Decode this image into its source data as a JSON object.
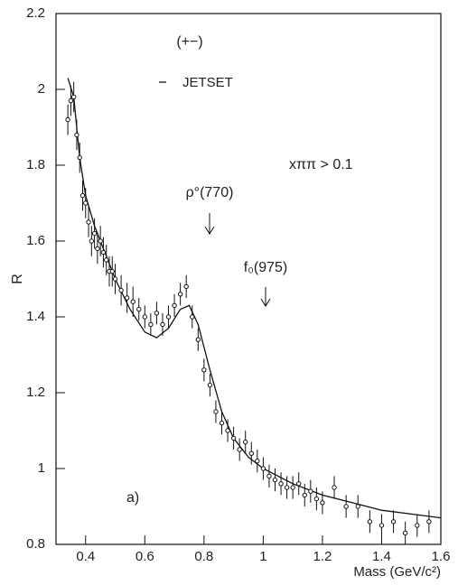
{
  "chart_data": {
    "type": "line",
    "x_label": "Mass (GeV/c²)",
    "y_label": "R",
    "annotations": [
      "(+−)",
      "xππ > 0.1",
      "ρ°(770)",
      "f₀(975)",
      "a)"
    ],
    "xlim": [
      0.3,
      1.6
    ],
    "ylim": [
      0.8,
      2.2
    ],
    "xticks": [
      0.4,
      0.6,
      0.8,
      1,
      1.2,
      1.4,
      1.6
    ],
    "yticks": [
      0.8,
      1,
      1.2,
      1.4,
      1.6,
      1.8,
      2,
      2.2
    ],
    "series": [
      {
        "name": "JETSET",
        "color": "#111",
        "style": "line",
        "x": [
          0.34,
          0.36,
          0.38,
          0.4,
          0.43,
          0.46,
          0.5,
          0.55,
          0.6,
          0.64,
          0.68,
          0.72,
          0.75,
          0.78,
          0.82,
          0.86,
          0.9,
          0.95,
          1.0,
          1.1,
          1.2,
          1.3,
          1.4,
          1.5,
          1.6
        ],
        "values": [
          2.03,
          1.98,
          1.82,
          1.72,
          1.64,
          1.58,
          1.5,
          1.42,
          1.36,
          1.345,
          1.37,
          1.42,
          1.43,
          1.38,
          1.26,
          1.15,
          1.08,
          1.03,
          1.0,
          0.96,
          0.93,
          0.91,
          0.89,
          0.88,
          0.87
        ]
      },
      {
        "name": "data",
        "color": "#111",
        "style": "points",
        "x": [
          0.34,
          0.35,
          0.36,
          0.37,
          0.38,
          0.39,
          0.4,
          0.41,
          0.42,
          0.43,
          0.44,
          0.45,
          0.46,
          0.47,
          0.48,
          0.49,
          0.5,
          0.52,
          0.54,
          0.56,
          0.58,
          0.6,
          0.62,
          0.64,
          0.66,
          0.68,
          0.7,
          0.72,
          0.74,
          0.76,
          0.78,
          0.8,
          0.82,
          0.84,
          0.86,
          0.88,
          0.9,
          0.92,
          0.94,
          0.96,
          0.98,
          1.0,
          1.02,
          1.04,
          1.06,
          1.08,
          1.1,
          1.12,
          1.14,
          1.16,
          1.18,
          1.2,
          1.24,
          1.28,
          1.32,
          1.36,
          1.4,
          1.44,
          1.48,
          1.52,
          1.56
        ],
        "values": [
          1.92,
          1.97,
          1.98,
          1.88,
          1.82,
          1.72,
          1.7,
          1.65,
          1.6,
          1.62,
          1.58,
          1.6,
          1.57,
          1.55,
          1.52,
          1.52,
          1.5,
          1.47,
          1.45,
          1.44,
          1.42,
          1.4,
          1.38,
          1.41,
          1.38,
          1.4,
          1.43,
          1.46,
          1.48,
          1.4,
          1.34,
          1.26,
          1.22,
          1.15,
          1.12,
          1.1,
          1.08,
          1.05,
          1.07,
          1.04,
          1.02,
          1.0,
          0.98,
          0.97,
          0.96,
          0.95,
          0.95,
          0.96,
          0.93,
          0.94,
          0.92,
          0.91,
          0.95,
          0.9,
          0.9,
          0.86,
          0.85,
          0.86,
          0.83,
          0.85,
          0.86
        ],
        "errors": [
          0.04,
          0.04,
          0.04,
          0.04,
          0.04,
          0.04,
          0.04,
          0.04,
          0.04,
          0.04,
          0.04,
          0.04,
          0.04,
          0.04,
          0.04,
          0.04,
          0.04,
          0.04,
          0.04,
          0.04,
          0.03,
          0.03,
          0.03,
          0.03,
          0.03,
          0.03,
          0.03,
          0.03,
          0.03,
          0.03,
          0.03,
          0.03,
          0.03,
          0.03,
          0.03,
          0.03,
          0.03,
          0.03,
          0.03,
          0.03,
          0.03,
          0.03,
          0.03,
          0.03,
          0.03,
          0.03,
          0.03,
          0.03,
          0.03,
          0.03,
          0.03,
          0.03,
          0.03,
          0.03,
          0.03,
          0.03,
          0.03,
          0.03,
          0.03,
          0.03,
          0.03
        ]
      }
    ]
  }
}
